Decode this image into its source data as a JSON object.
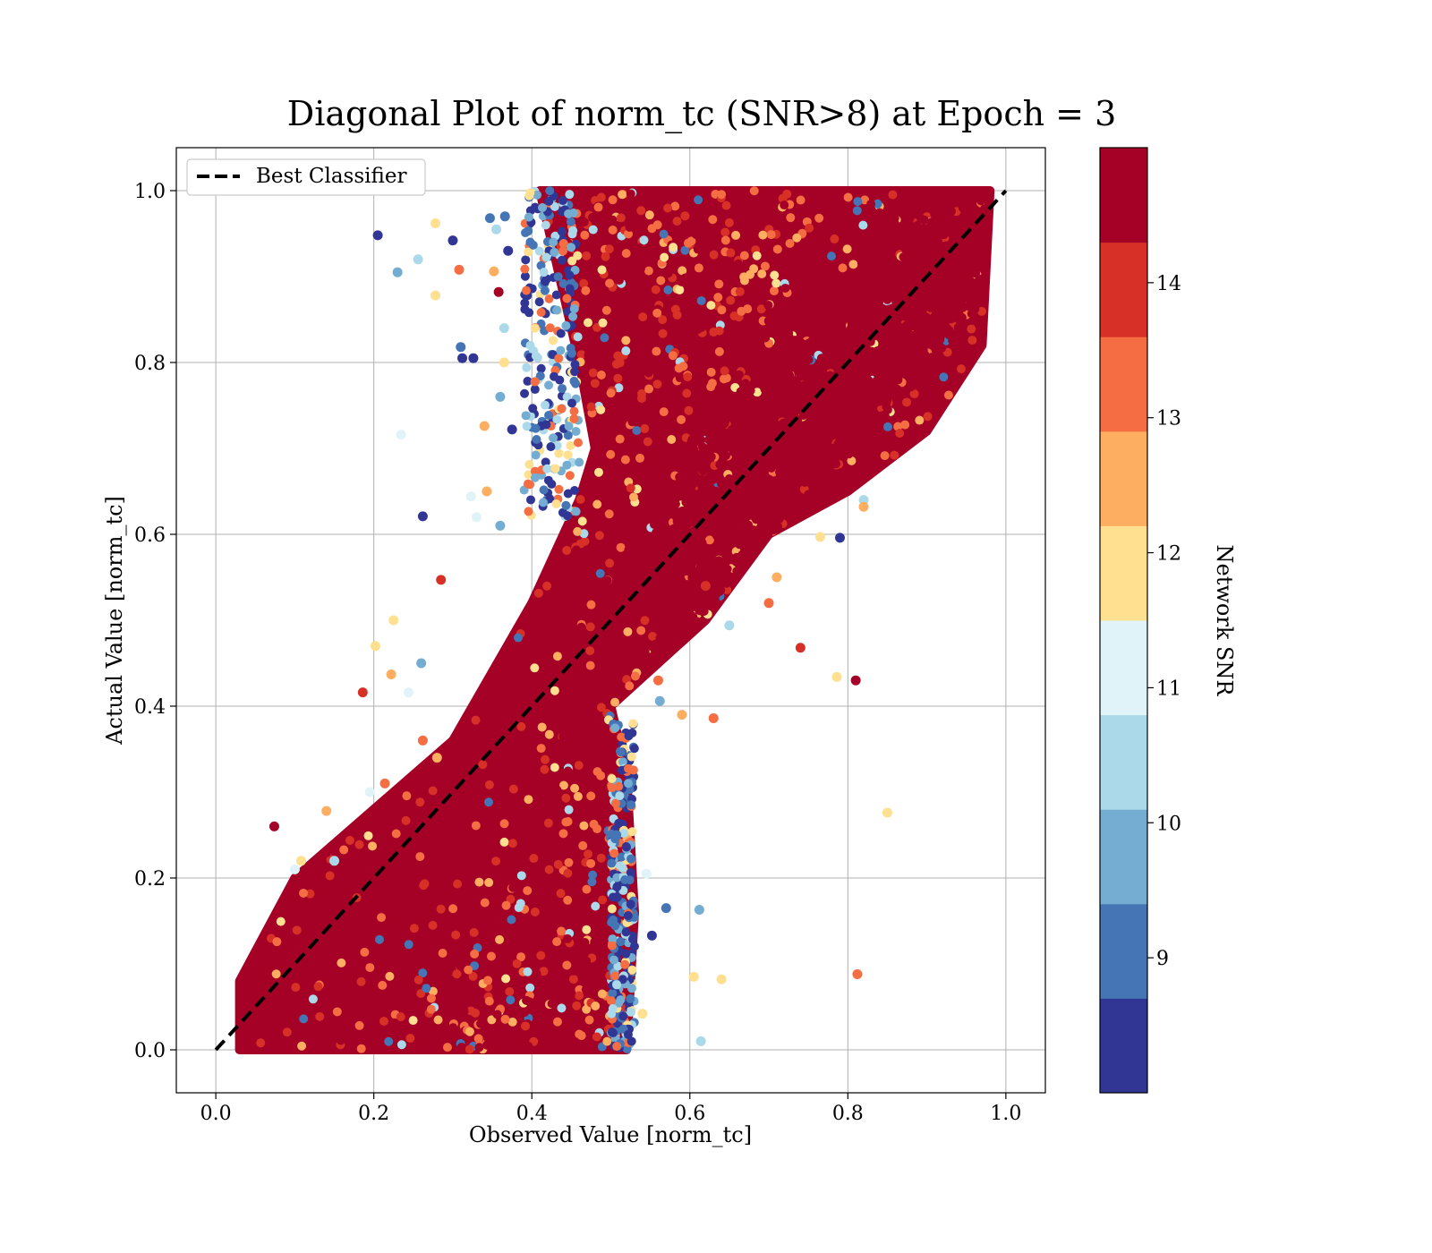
{
  "chart_data": {
    "type": "scatter",
    "title": "Diagonal Plot of norm_tc (SNR>8) at Epoch = 3",
    "xlabel": "Observed Value [norm_tc]",
    "ylabel": "Actual Value [norm_tc]",
    "xlim": [
      -0.05,
      1.05
    ],
    "ylim": [
      -0.05,
      1.05
    ],
    "xticks": [
      "0.0",
      "0.2",
      "0.4",
      "0.6",
      "0.8",
      "1.0"
    ],
    "yticks": [
      "0.0",
      "0.2",
      "0.4",
      "0.6",
      "0.8",
      "1.0"
    ],
    "grid": true,
    "legend": {
      "label": "Best Classifier",
      "placement": "upper-left",
      "line_style": "dashed",
      "color": "#000000"
    },
    "reference_line": {
      "x": [
        0,
        1
      ],
      "y": [
        0,
        1
      ]
    },
    "colorbar": {
      "label": "Network SNR",
      "range": [
        8,
        15
      ],
      "ticks": [
        "9",
        "10",
        "11",
        "12",
        "13",
        "14"
      ],
      "bins": [
        {
          "from": 8.0,
          "to": 8.7,
          "color": "#313695"
        },
        {
          "from": 8.7,
          "to": 9.4,
          "color": "#4575b4"
        },
        {
          "from": 9.4,
          "to": 10.1,
          "color": "#74add1"
        },
        {
          "from": 10.1,
          "to": 10.8,
          "color": "#abd9e9"
        },
        {
          "from": 10.8,
          "to": 11.5,
          "color": "#e0f3f8"
        },
        {
          "from": 11.5,
          "to": 12.2,
          "color": "#fee090"
        },
        {
          "from": 12.2,
          "to": 12.9,
          "color": "#fdae61"
        },
        {
          "from": 12.9,
          "to": 13.6,
          "color": "#f46d43"
        },
        {
          "from": 13.6,
          "to": 14.3,
          "color": "#d73027"
        },
        {
          "from": 14.3,
          "to": 15.0,
          "color": "#a50026"
        }
      ]
    },
    "dense_region": {
      "boundary": [
        [
          0.03,
          0.0
        ],
        [
          0.52,
          0.0
        ],
        [
          0.53,
          0.16
        ],
        [
          0.52,
          0.32
        ],
        [
          0.5,
          0.4
        ],
        [
          0.62,
          0.5
        ],
        [
          0.7,
          0.6
        ],
        [
          0.8,
          0.65
        ],
        [
          0.9,
          0.72
        ],
        [
          0.97,
          0.82
        ],
        [
          0.98,
          1.0
        ],
        [
          0.41,
          1.0
        ],
        [
          0.46,
          0.8
        ],
        [
          0.48,
          0.7
        ],
        [
          0.46,
          0.64
        ],
        [
          0.4,
          0.52
        ],
        [
          0.3,
          0.36
        ],
        [
          0.1,
          0.2
        ],
        [
          0.03,
          0.08
        ]
      ],
      "dominant_snr": 15
    },
    "series": [
      {
        "name": "",
        "points": [
          [
            0.205,
            0.948,
            8.3
          ],
          [
            0.23,
            0.905,
            9.9
          ],
          [
            0.256,
            0.92,
            10.4
          ],
          [
            0.278,
            0.962,
            11.8
          ],
          [
            0.278,
            0.878,
            11.8
          ],
          [
            0.3,
            0.942,
            8.3
          ],
          [
            0.308,
            0.908,
            13.2
          ],
          [
            0.31,
            0.818,
            9.0
          ],
          [
            0.312,
            0.805,
            8.3
          ],
          [
            0.326,
            0.805,
            8.3
          ],
          [
            0.347,
            0.968,
            9.2
          ],
          [
            0.355,
            0.955,
            10.1
          ],
          [
            0.352,
            0.906,
            12.6
          ],
          [
            0.358,
            0.882,
            14.6
          ],
          [
            0.366,
            0.97,
            9.3
          ],
          [
            0.37,
            0.93,
            8.3
          ],
          [
            0.365,
            0.84,
            10.2
          ],
          [
            0.365,
            0.8,
            11.8
          ],
          [
            0.36,
            0.76,
            9.5
          ],
          [
            0.34,
            0.726,
            12.6
          ],
          [
            0.375,
            0.722,
            8.3
          ],
          [
            0.2345,
            0.716,
            10.8
          ],
          [
            0.262,
            0.621,
            8.3
          ],
          [
            0.323,
            0.644,
            10.8
          ],
          [
            0.33,
            0.62,
            10.8
          ],
          [
            0.343,
            0.65,
            12.6
          ],
          [
            0.36,
            0.61,
            9.5
          ],
          [
            0.285,
            0.547,
            14.0
          ],
          [
            0.225,
            0.5,
            11.5
          ],
          [
            0.202,
            0.47,
            11.8
          ],
          [
            0.26,
            0.45,
            10.0
          ],
          [
            0.244,
            0.416,
            11.0
          ],
          [
            0.222,
            0.437,
            12.6
          ],
          [
            0.186,
            0.416,
            14.0
          ],
          [
            0.262,
            0.36,
            13.0
          ],
          [
            0.28,
            0.34,
            12.4
          ],
          [
            0.195,
            0.3,
            10.8
          ],
          [
            0.214,
            0.31,
            13.0
          ],
          [
            0.074,
            0.26,
            14.3
          ],
          [
            0.14,
            0.278,
            12.6
          ],
          [
            0.15,
            0.22,
            10.2
          ],
          [
            0.108,
            0.22,
            11.8
          ],
          [
            0.1,
            0.21,
            10.8
          ],
          [
            0.562,
            0.406,
            9.5
          ],
          [
            0.56,
            0.43,
            13.4
          ],
          [
            0.59,
            0.39,
            12.4
          ],
          [
            0.63,
            0.386,
            13.4
          ],
          [
            0.74,
            0.468,
            14.0
          ],
          [
            0.786,
            0.434,
            11.8
          ],
          [
            0.81,
            0.43,
            14.6
          ],
          [
            0.85,
            0.276,
            11.8
          ],
          [
            0.545,
            0.205,
            11.2
          ],
          [
            0.57,
            0.165,
            8.7
          ],
          [
            0.612,
            0.163,
            9.9
          ],
          [
            0.552,
            0.133,
            8.3
          ],
          [
            0.605,
            0.085,
            11.8
          ],
          [
            0.64,
            0.082,
            11.8
          ],
          [
            0.812,
            0.088,
            13.2
          ],
          [
            0.614,
            0.01,
            10.2
          ],
          [
            0.54,
            0.042,
            11.8
          ],
          [
            0.65,
            0.494,
            10.2
          ],
          [
            0.62,
            0.54,
            14.0
          ],
          [
            0.82,
            0.64,
            10.2
          ],
          [
            0.82,
            0.632,
            12.6
          ],
          [
            0.79,
            0.596,
            8.3
          ],
          [
            0.765,
            0.597,
            11.8
          ],
          [
            0.71,
            0.55,
            12.4
          ],
          [
            0.7,
            0.52,
            13.0
          ]
        ]
      }
    ]
  }
}
